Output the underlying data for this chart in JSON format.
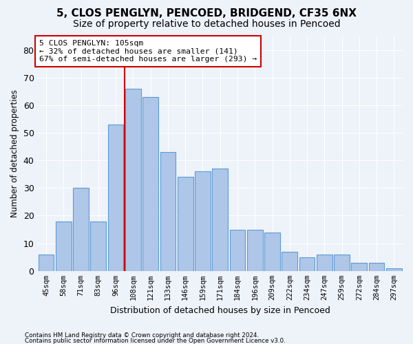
{
  "title1": "5, CLOS PENGLYN, PENCOED, BRIDGEND, CF35 6NX",
  "title2": "Size of property relative to detached houses in Pencoed",
  "xlabel": "Distribution of detached houses by size in Pencoed",
  "ylabel": "Number of detached properties",
  "categories": [
    "45sqm",
    "58sqm",
    "71sqm",
    "83sqm",
    "96sqm",
    "108sqm",
    "121sqm",
    "133sqm",
    "146sqm",
    "159sqm",
    "171sqm",
    "184sqm",
    "196sqm",
    "209sqm",
    "222sqm",
    "234sqm",
    "247sqm",
    "259sqm",
    "272sqm",
    "284sqm",
    "297sqm"
  ],
  "values": [
    6,
    18,
    30,
    18,
    53,
    66,
    63,
    43,
    34,
    36,
    37,
    15,
    15,
    14,
    7,
    5,
    6,
    6,
    3,
    3,
    1
  ],
  "bar_color": "#aec6e8",
  "bar_edge_color": "#5b9bd5",
  "vline_x": 4.5,
  "vline_color": "#cc0000",
  "annotation_text": "5 CLOS PENGLYN: 105sqm\n← 32% of detached houses are smaller (141)\n67% of semi-detached houses are larger (293) →",
  "annotation_box_color": "#ffffff",
  "annotation_box_edge": "#cc0000",
  "ylim": [
    0,
    85
  ],
  "yticks": [
    0,
    10,
    20,
    30,
    40,
    50,
    60,
    70,
    80
  ],
  "footer_line1": "Contains HM Land Registry data © Crown copyright and database right 2024.",
  "footer_line2": "Contains public sector information licensed under the Open Government Licence v3.0.",
  "background_color": "#eef2f9",
  "grid_color": "#ffffff",
  "title1_fontsize": 11,
  "title2_fontsize": 10,
  "xlabel_fontsize": 9,
  "ylabel_fontsize": 8.5
}
